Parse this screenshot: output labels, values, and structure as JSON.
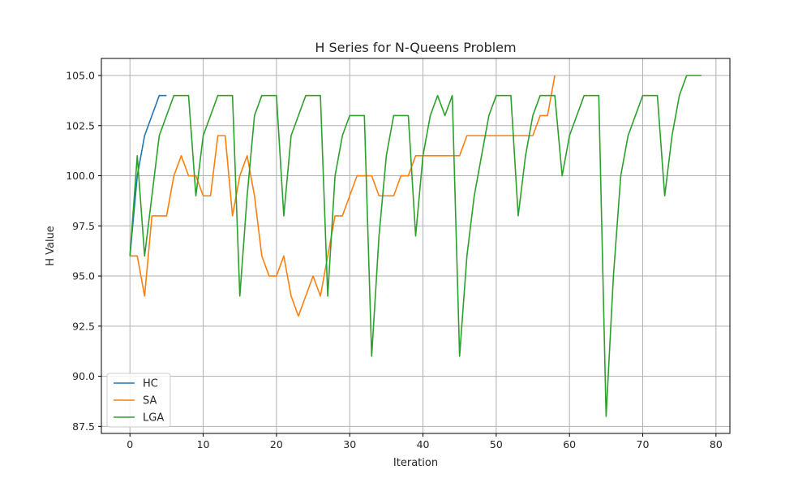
{
  "chart_data": {
    "type": "line",
    "title": "H Series for N-Queens Problem",
    "xlabel": "Iteration",
    "ylabel": "H Value",
    "xlim": [
      -3.9,
      81.9
    ],
    "ylim": [
      87.15,
      105.85
    ],
    "xticks": [
      0,
      10,
      20,
      30,
      40,
      50,
      60,
      70,
      80
    ],
    "yticks": [
      87.5,
      90.0,
      92.5,
      95.0,
      97.5,
      100.0,
      102.5,
      105.0
    ],
    "xtick_labels": [
      "0",
      "10",
      "20",
      "30",
      "40",
      "50",
      "60",
      "70",
      "80"
    ],
    "ytick_labels": [
      "87.5",
      "90.0",
      "92.5",
      "95.0",
      "97.5",
      "100.0",
      "102.5",
      "105.0"
    ],
    "grid": true,
    "legend_position": "lower-left",
    "series": [
      {
        "name": "HC",
        "color": "#1f77b4",
        "values": [
          96,
          100,
          102,
          103,
          104,
          104
        ]
      },
      {
        "name": "SA",
        "color": "#ff7f0e",
        "values": [
          96,
          96,
          94,
          98,
          98,
          98,
          100,
          101,
          100,
          100,
          99,
          99,
          102,
          102,
          98,
          100,
          101,
          99,
          96,
          95,
          95,
          96,
          94,
          93,
          94,
          95,
          94,
          96,
          98,
          98,
          99,
          100,
          100,
          100,
          99,
          99,
          99,
          100,
          100,
          101,
          101,
          101,
          101,
          101,
          101,
          101,
          102,
          102,
          102,
          102,
          102,
          102,
          102,
          102,
          102,
          102,
          103,
          103,
          105
        ]
      },
      {
        "name": "LGA",
        "color": "#2ca02c",
        "values": [
          96,
          101,
          96,
          99,
          102,
          103,
          104,
          104,
          104,
          99,
          102,
          103,
          104,
          104,
          104,
          94,
          99,
          103,
          104,
          104,
          104,
          98,
          102,
          103,
          104,
          104,
          104,
          94,
          100,
          102,
          103,
          103,
          103,
          91,
          97,
          101,
          103,
          103,
          103,
          97,
          101,
          103,
          104,
          103,
          104,
          91,
          96,
          99,
          101,
          103,
          104,
          104,
          104,
          98,
          101,
          103,
          104,
          104,
          104,
          100,
          102,
          103,
          104,
          104,
          104,
          88,
          95,
          100,
          102,
          103,
          104,
          104,
          104,
          99,
          102,
          104,
          105,
          105,
          105
        ]
      }
    ]
  }
}
